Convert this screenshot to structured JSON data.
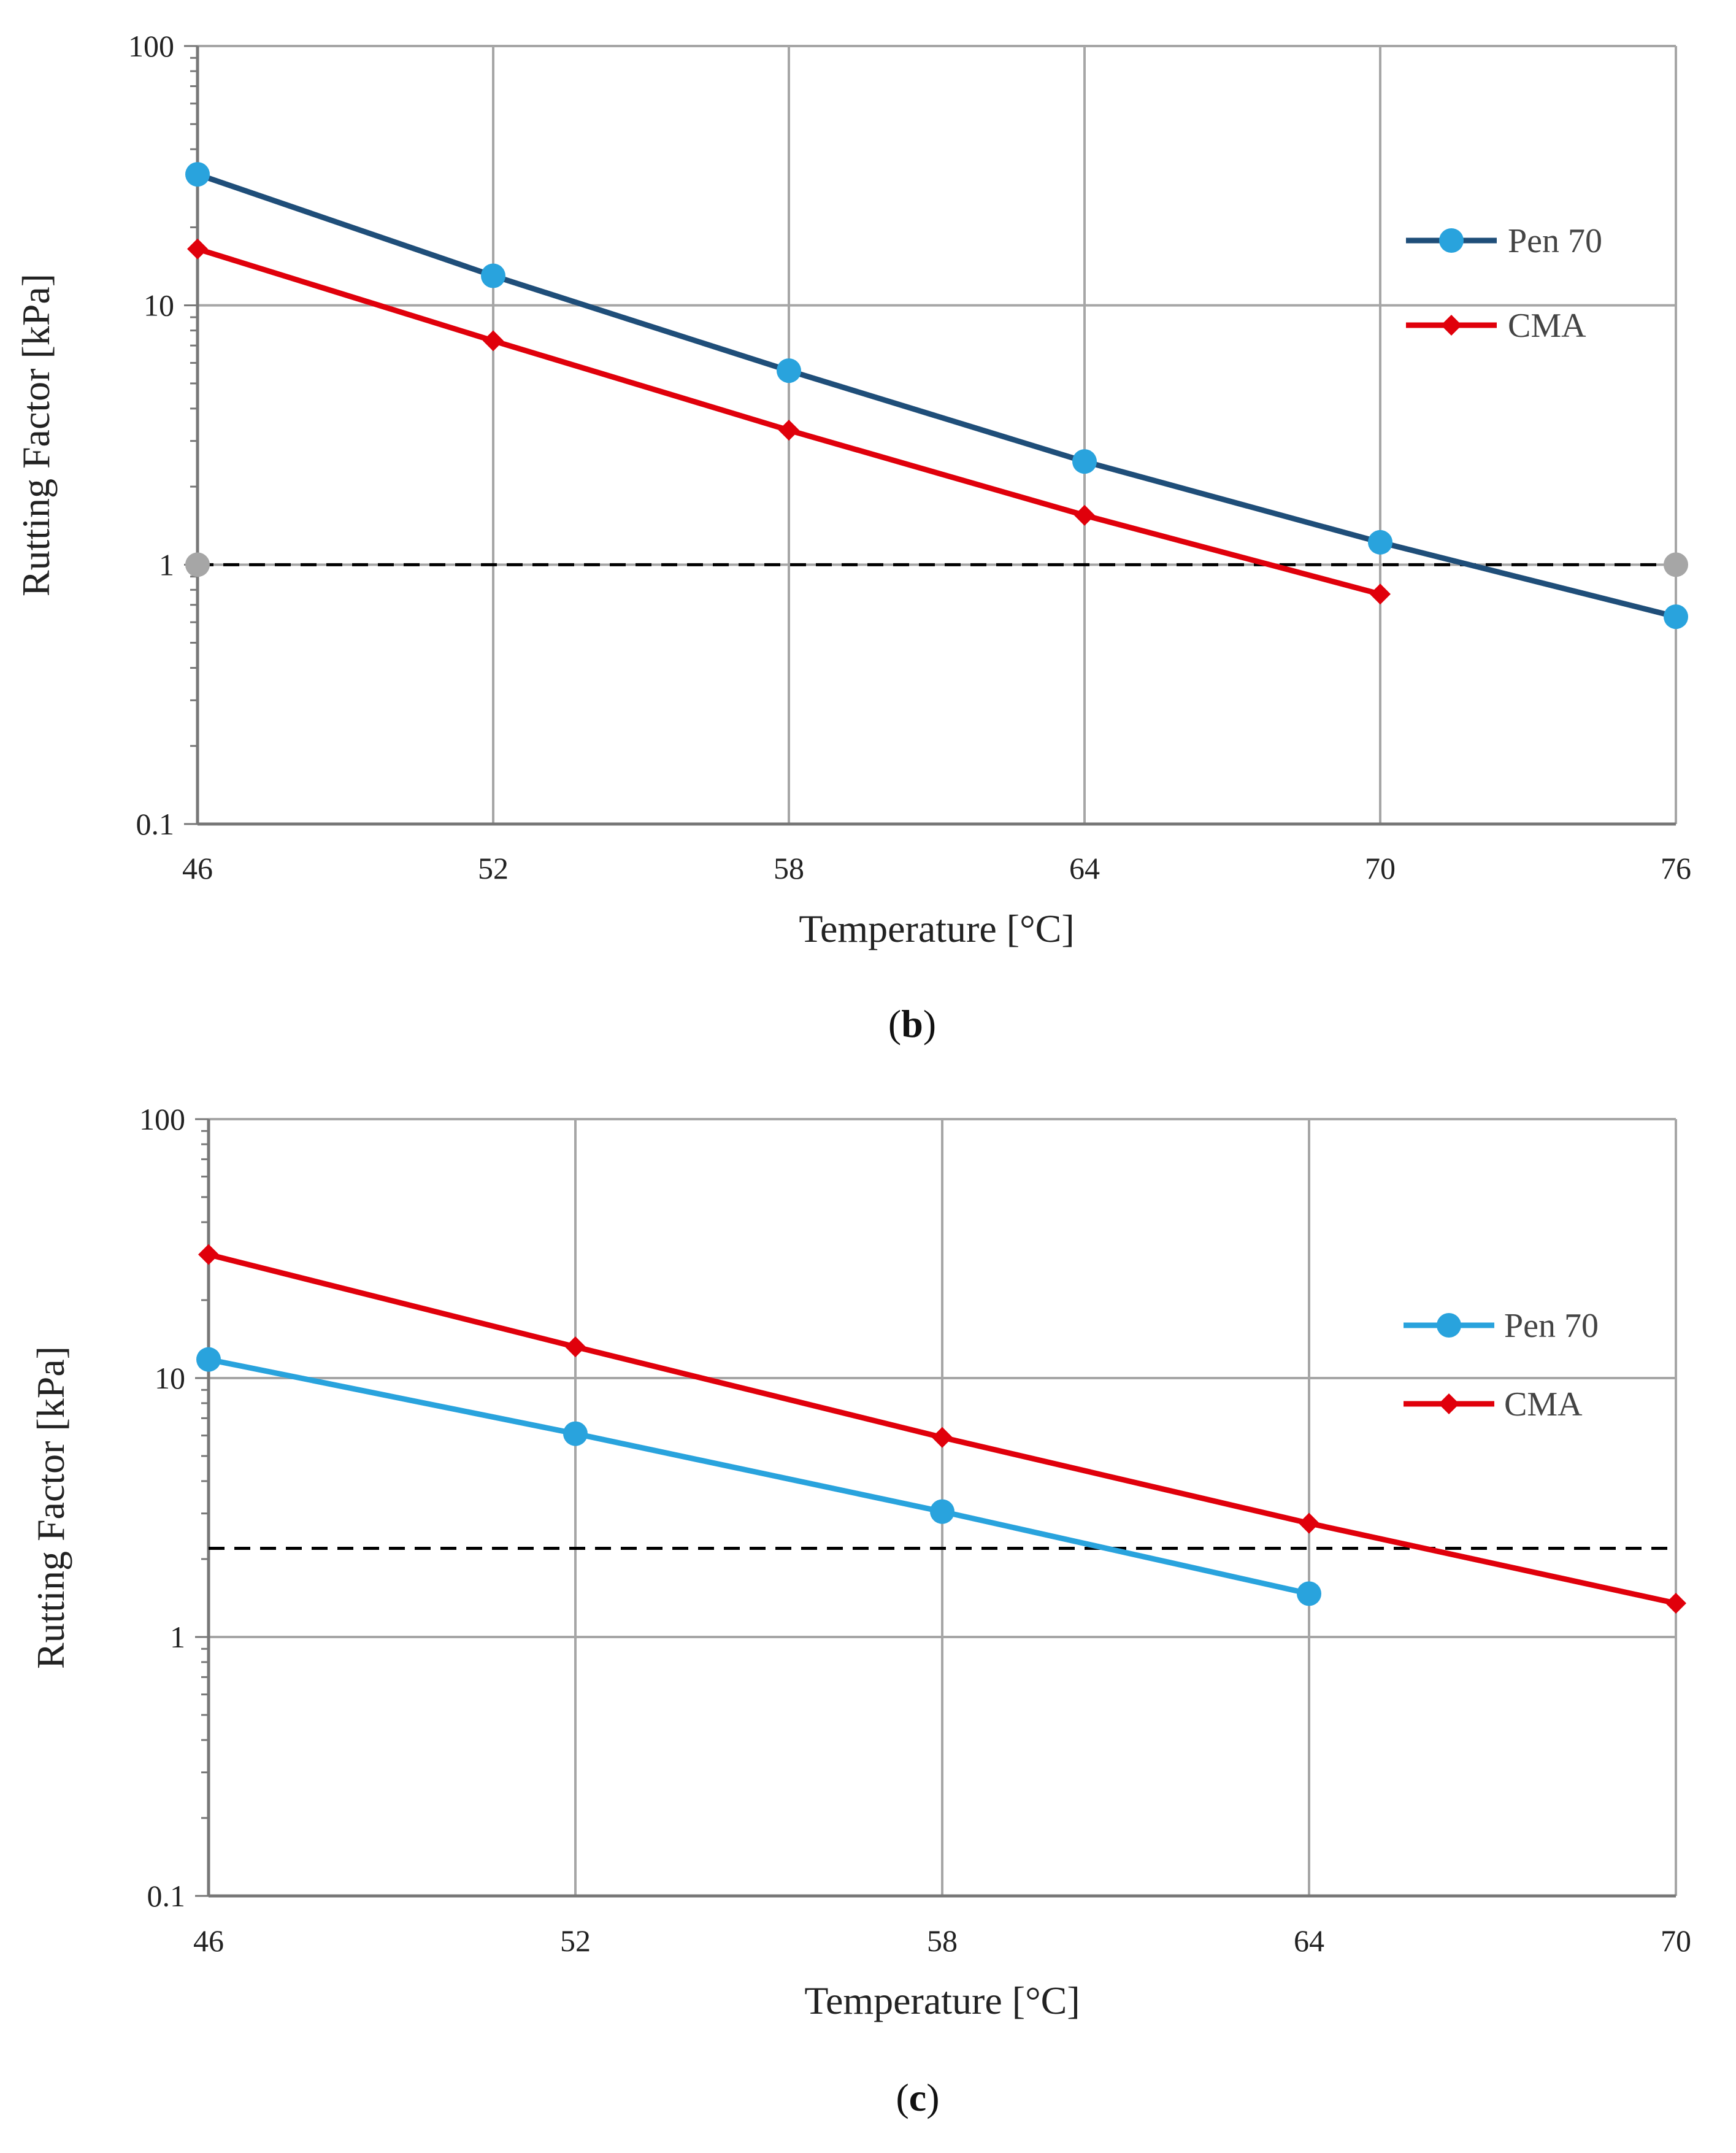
{
  "chart_data": [
    {
      "type": "line",
      "panel_label": {
        "open": "(",
        "letter": "b",
        "close": ")"
      },
      "xlabel": "Temperature [°C]",
      "ylabel": "Rutting Factor [kPa]",
      "y_scale": "log",
      "xlim": [
        46,
        76
      ],
      "ylim": [
        0.1,
        100
      ],
      "x_ticks": [
        "46",
        "52",
        "58",
        "64",
        "70",
        "76"
      ],
      "y_ticks": [
        "0.1",
        "1",
        "10",
        "100"
      ],
      "grid": true,
      "legend_position": "upper-right",
      "reference_line": {
        "y": 1,
        "style": "dashed",
        "color": "#000000",
        "end_marker_color": "#a6a6a6"
      },
      "series": [
        {
          "name": "Pen 70",
          "marker": "circle",
          "color": "#1f4e79",
          "marker_color": "#29a3dd",
          "x": [
            46,
            52,
            58,
            64,
            70,
            76
          ],
          "y": [
            32,
            13,
            5.6,
            2.5,
            1.22,
            0.63
          ]
        },
        {
          "name": "CMA",
          "marker": "diamond",
          "color": "#e0000b",
          "marker_color": "#e0000b",
          "x": [
            46,
            52,
            58,
            64,
            70
          ],
          "y": [
            16.5,
            7.3,
            3.3,
            1.55,
            0.77
          ]
        }
      ]
    },
    {
      "type": "line",
      "panel_label": {
        "open": "(",
        "letter": "c",
        "close": ")"
      },
      "xlabel": "Temperature [°C]",
      "ylabel": "Rutting Factor [kPa]",
      "y_scale": "log",
      "xlim": [
        46,
        70
      ],
      "ylim": [
        0.1,
        100
      ],
      "x_ticks": [
        "46",
        "52",
        "58",
        "64",
        "70"
      ],
      "y_ticks": [
        "0.1",
        "1",
        "10",
        "100"
      ],
      "grid": true,
      "legend_position": "upper-right",
      "reference_line": {
        "y": 2.2,
        "style": "dashed",
        "color": "#000000"
      },
      "series": [
        {
          "name": "Pen 70",
          "marker": "circle",
          "color": "#29a3dd",
          "marker_color": "#29a3dd",
          "x": [
            46,
            52,
            58,
            64
          ],
          "y": [
            11.8,
            6.1,
            3.05,
            1.47
          ]
        },
        {
          "name": "CMA",
          "marker": "diamond",
          "color": "#e0000b",
          "marker_color": "#e0000b",
          "x": [
            46,
            52,
            58,
            64,
            70
          ],
          "y": [
            30,
            13.2,
            5.9,
            2.75,
            1.35
          ]
        }
      ]
    }
  ]
}
